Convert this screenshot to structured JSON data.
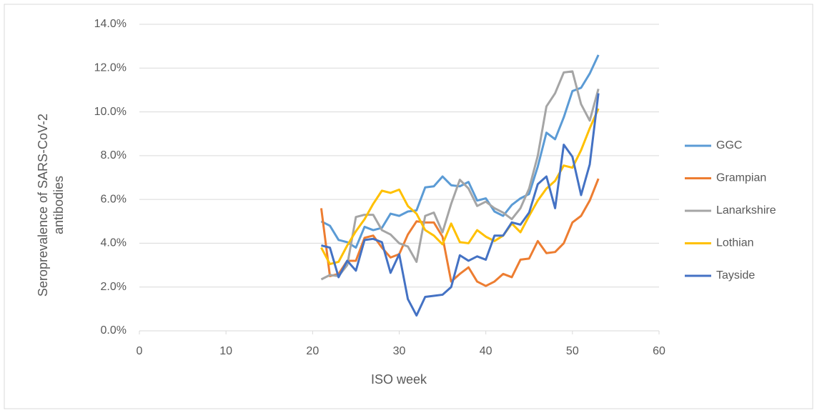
{
  "chart_data": {
    "type": "line",
    "x_label": "ISO week",
    "y_label": "Seroprevalence of SARS-CoV-2 antibodies",
    "x": [
      21,
      22,
      23,
      24,
      25,
      26,
      27,
      28,
      29,
      30,
      31,
      32,
      33,
      34,
      35,
      36,
      37,
      38,
      39,
      40,
      41,
      42,
      43,
      44,
      45,
      46,
      47,
      48,
      49,
      50,
      51,
      52,
      53
    ],
    "series": [
      {
        "name": "GGC",
        "color": "#5b9bd5",
        "values": [
          5.0,
          4.8,
          4.15,
          4.05,
          3.8,
          4.75,
          4.6,
          4.7,
          5.35,
          5.25,
          5.45,
          5.5,
          6.55,
          6.6,
          7.05,
          6.65,
          6.6,
          6.8,
          5.95,
          6.05,
          5.45,
          5.25,
          5.75,
          6.05,
          6.25,
          7.5,
          9.05,
          8.75,
          9.75,
          10.95,
          11.1,
          11.75,
          12.6
        ]
      },
      {
        "name": "Grampian",
        "color": "#ed7d31",
        "values": [
          5.6,
          2.5,
          2.6,
          3.2,
          3.2,
          4.25,
          4.35,
          3.8,
          3.35,
          3.5,
          4.4,
          5.0,
          4.95,
          4.95,
          4.3,
          2.25,
          2.6,
          2.9,
          2.25,
          2.05,
          2.25,
          2.6,
          2.45,
          3.25,
          3.3,
          4.1,
          3.55,
          3.6,
          4.0,
          4.95,
          5.25,
          5.95,
          6.95
        ]
      },
      {
        "name": "Lanarkshire",
        "color": "#a5a5a5",
        "values": [
          2.35,
          2.55,
          2.5,
          3.0,
          5.2,
          5.3,
          5.3,
          4.6,
          4.4,
          4.0,
          3.85,
          3.15,
          5.25,
          5.4,
          4.5,
          5.8,
          6.9,
          6.5,
          5.7,
          5.9,
          5.6,
          5.4,
          5.1,
          5.6,
          6.5,
          8.0,
          10.25,
          10.85,
          11.8,
          11.85,
          10.35,
          9.6,
          11.05
        ]
      },
      {
        "name": "Lothian",
        "color": "#ffc000",
        "values": [
          3.8,
          3.05,
          3.15,
          3.9,
          4.55,
          5.1,
          5.8,
          6.4,
          6.3,
          6.45,
          5.7,
          5.35,
          4.6,
          4.35,
          3.95,
          4.9,
          4.05,
          4.0,
          4.6,
          4.3,
          4.1,
          4.35,
          4.9,
          4.5,
          5.25,
          5.95,
          6.5,
          6.85,
          7.55,
          7.45,
          8.25,
          9.25,
          10.15
        ]
      },
      {
        "name": "Tayside",
        "color": "#4472c4",
        "values": [
          3.9,
          3.8,
          2.45,
          3.2,
          2.75,
          4.15,
          4.2,
          4.05,
          2.65,
          3.5,
          1.45,
          0.7,
          1.55,
          1.6,
          1.65,
          2.0,
          3.45,
          3.2,
          3.4,
          3.25,
          4.35,
          4.35,
          4.95,
          4.85,
          5.4,
          6.7,
          7.05,
          5.6,
          8.5,
          7.95,
          6.2,
          7.6,
          10.85
        ]
      }
    ],
    "xlim": [
      0,
      60
    ],
    "xticks": [
      0,
      10,
      20,
      30,
      40,
      50,
      60
    ],
    "ylim": [
      0,
      14
    ],
    "yticks": [
      {
        "value": 0,
        "label": "0.0%"
      },
      {
        "value": 2,
        "label": "2.0%"
      },
      {
        "value": 4,
        "label": "4.0%"
      },
      {
        "value": 6,
        "label": "6.0%"
      },
      {
        "value": 8,
        "label": "8.0%"
      },
      {
        "value": 10,
        "label": "10.0%"
      },
      {
        "value": 12,
        "label": "12.0%"
      },
      {
        "value": 14,
        "label": "14.0%"
      }
    ],
    "grid": true,
    "legend": "right"
  }
}
